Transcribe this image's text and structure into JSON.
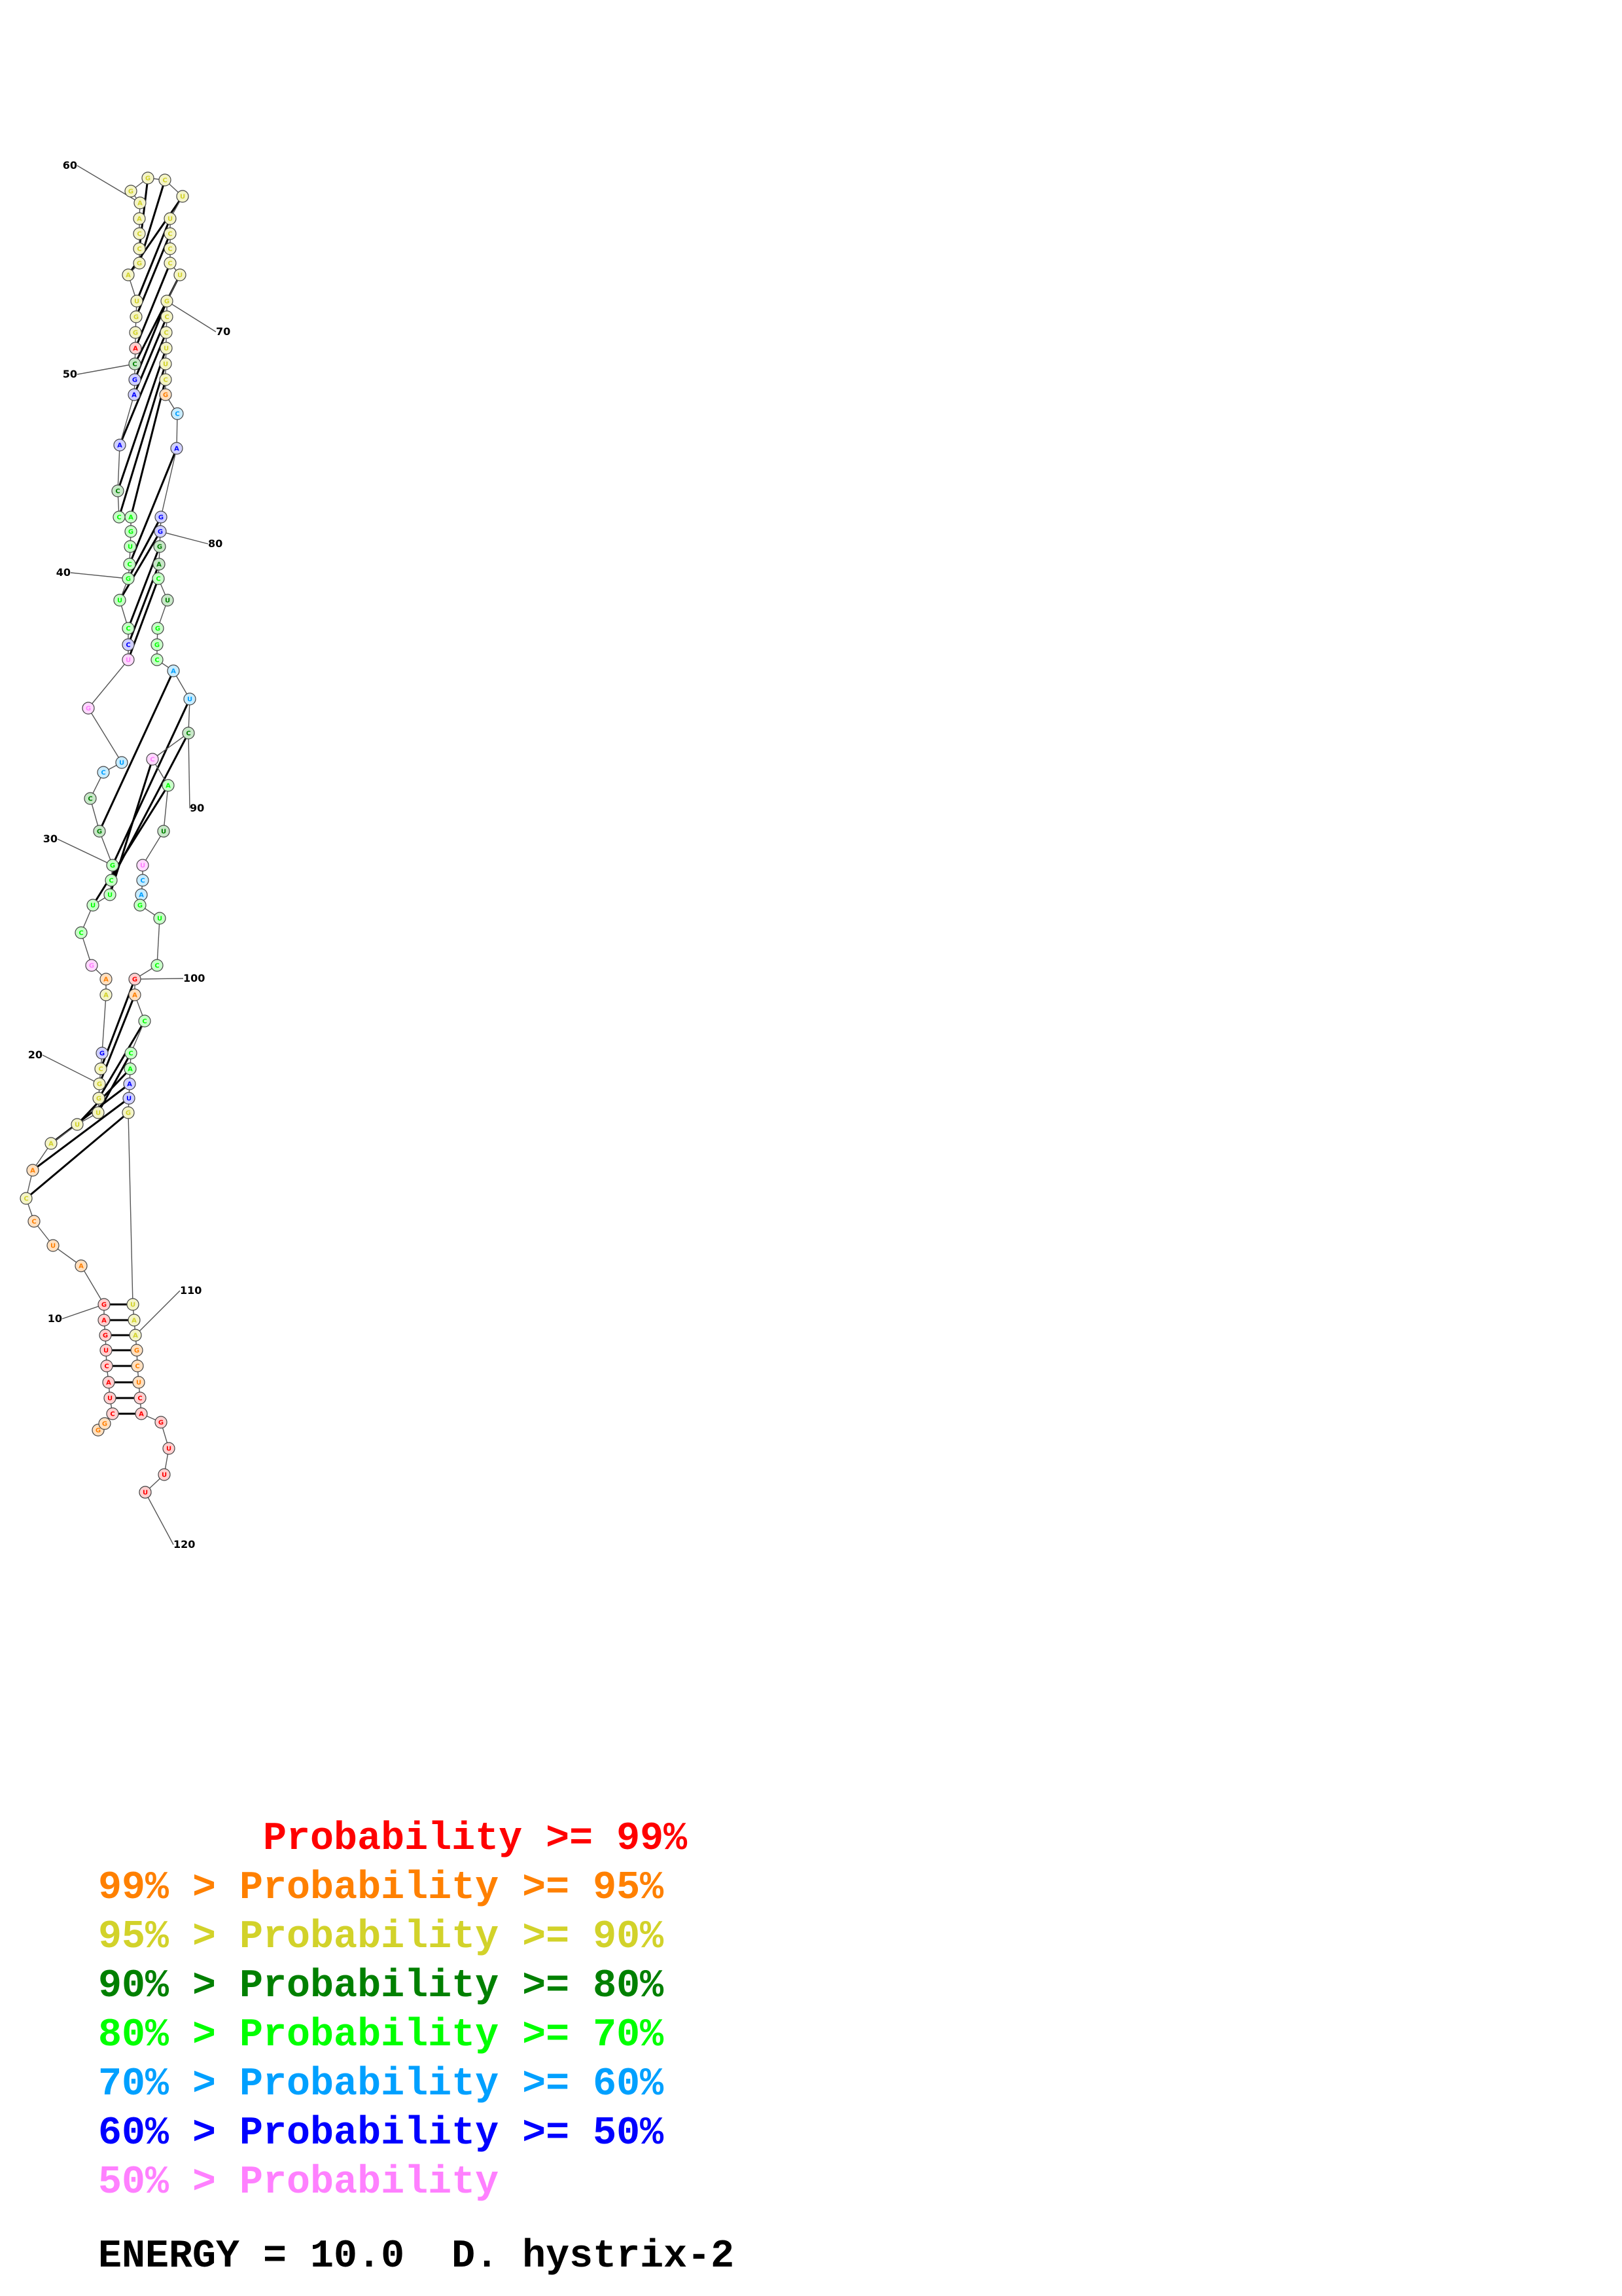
{
  "structure": {
    "length": 120,
    "tick_labels": [
      "10",
      "20",
      "30",
      "40",
      "50",
      "60",
      "70",
      "80",
      "90",
      "100",
      "110",
      "120"
    ],
    "bases": [
      "G",
      "G",
      "C",
      "U",
      "A",
      "C",
      "U",
      "G",
      "A",
      "G",
      "A",
      "U",
      "C",
      "C",
      "A",
      "A",
      "U",
      "U",
      "G",
      "G",
      "C",
      "G",
      "A",
      "A",
      "G",
      "C",
      "U",
      "U",
      "C",
      "G",
      "G",
      "C",
      "C",
      "U",
      "G",
      "U",
      "C",
      "C",
      "U",
      "G",
      "C",
      "U",
      "G",
      "A",
      "C",
      "C",
      "A",
      "A",
      "G",
      "C",
      "A",
      "G",
      "G",
      "U",
      "A",
      "G",
      "C",
      "C",
      "A",
      "A",
      "G",
      "G",
      "C",
      "U",
      "U",
      "C",
      "C",
      "C",
      "U",
      "G",
      "C",
      "C",
      "U",
      "U",
      "C",
      "G",
      "C",
      "A",
      "G",
      "G",
      "G",
      "A",
      "C",
      "U",
      "G",
      "G",
      "C",
      "A",
      "U",
      "C",
      "C",
      "A",
      "U",
      "U",
      "C",
      "A",
      "G",
      "U",
      "C",
      "G",
      "A",
      "C",
      "C",
      "A",
      "A",
      "U",
      "G",
      "U",
      "A",
      "A",
      "G",
      "C",
      "U",
      "C",
      "A",
      "G",
      "U",
      "U",
      "U",
      "U"
    ],
    "probability_classes": [
      "orange",
      "orange",
      "red",
      "red",
      "red",
      "red",
      "red",
      "red",
      "red",
      "red",
      "orange",
      "orange",
      "orange",
      "yellow",
      "orange",
      "yellow",
      "yellow",
      "yellow",
      "yellow",
      "yellow",
      "yellow",
      "blue",
      "yellow",
      "orange",
      "pink",
      "green",
      "green",
      "green",
      "green",
      "green",
      "dkgreen",
      "dkgreen",
      "cyan",
      "cyan",
      "violet",
      "violet",
      "blue",
      "green",
      "green",
      "green",
      "green",
      "green",
      "green",
      "green",
      "green",
      "dkgreen",
      "blue",
      "blue",
      "blue",
      "dkgreen",
      "red",
      "yellow",
      "yellow",
      "yellow",
      "yellow",
      "yellow",
      "yellow",
      "yellow",
      "yellow",
      "yellow",
      "yellow",
      "yellow",
      "yellow",
      "yellow",
      "yellow",
      "yellow",
      "yellow",
      "yellow",
      "yellow",
      "yellow",
      "yellow",
      "yellow",
      "yellow",
      "yellow",
      "yellow",
      "orange",
      "cyan",
      "blue",
      "blue",
      "blue",
      "dkgreen",
      "dkgreen",
      "green",
      "dkgreen",
      "green",
      "green",
      "green",
      "cyan",
      "cyan",
      "dkgreen",
      "violet",
      "green",
      "dkgreen",
      "violet",
      "cyan",
      "cyan",
      "green",
      "green",
      "green",
      "red",
      "orange",
      "green",
      "green",
      "green",
      "blue",
      "blue",
      "yellow",
      "yellow",
      "yellow",
      "yellow",
      "orange",
      "orange",
      "orange",
      "red",
      "red",
      "red",
      "red",
      "red",
      "red",
      "red"
    ],
    "pairs": [
      [
        3,
        115
      ],
      [
        4,
        114
      ],
      [
        5,
        113
      ],
      [
        6,
        112
      ],
      [
        7,
        111
      ],
      [
        8,
        110
      ],
      [
        9,
        109
      ],
      [
        10,
        108
      ],
      [
        14,
        107
      ],
      [
        15,
        106
      ],
      [
        16,
        105
      ],
      [
        17,
        104
      ],
      [
        18,
        103
      ],
      [
        19,
        102
      ],
      [
        20,
        101
      ],
      [
        21,
        100
      ],
      [
        27,
        92
      ],
      [
        28,
        91
      ],
      [
        29,
        90
      ],
      [
        30,
        89
      ],
      [
        31,
        88
      ],
      [
        36,
        83
      ],
      [
        37,
        82
      ],
      [
        38,
        81
      ],
      [
        39,
        80
      ],
      [
        40,
        79
      ],
      [
        41,
        78
      ],
      [
        44,
        75
      ],
      [
        45,
        74
      ],
      [
        46,
        73
      ],
      [
        47,
        72
      ],
      [
        48,
        71
      ],
      [
        49,
        70
      ],
      [
        50,
        69
      ],
      [
        51,
        68
      ],
      [
        53,
        66
      ],
      [
        54,
        65
      ],
      [
        55,
        64
      ],
      [
        56,
        63
      ],
      [
        57,
        62
      ]
    ]
  },
  "color_scale": {
    "red": "#ff0000",
    "orange": "#ff8000",
    "yellow": "#d2d22a",
    "dkgreen": "#008000",
    "green": "#00ff00",
    "cyan": "#00a0ff",
    "blue": "#0000ff",
    "pink": "#ff80ff",
    "violet": "#ff80ff"
  },
  "legend": [
    {
      "text": "       Probability >= 99%",
      "color": "#ff0000"
    },
    {
      "text": "99% > Probability >= 95%",
      "color": "#ff8000"
    },
    {
      "text": "95% > Probability >= 90%",
      "color": "#d2d22a"
    },
    {
      "text": "90% > Probability >= 80%",
      "color": "#008000"
    },
    {
      "text": "80% > Probability >= 70%",
      "color": "#00ff00"
    },
    {
      "text": "70% > Probability >= 60%",
      "color": "#00a0ff"
    },
    {
      "text": "60% > Probability >= 50%",
      "color": "#0000ff"
    },
    {
      "text": "50% > Probability",
      "color": "#ff80ff"
    }
  ],
  "energy_label": "ENERGY = 10.0  D. hystrix-2"
}
